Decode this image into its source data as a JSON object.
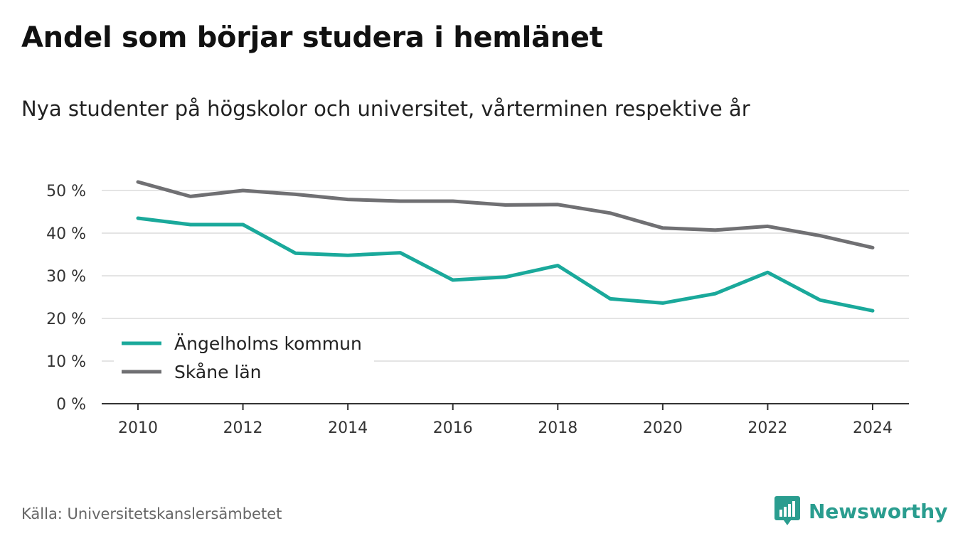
{
  "title": "Andel som börjar studera i hemlänet",
  "subtitle": "Nya studenter på högskolor och universitet, vårterminen respektive år",
  "source": "Källa: Universitetskanslersämbetet",
  "brand": {
    "name": "Newsworthy",
    "icon": "newsworthy-logo-icon",
    "color": "#2a9d8f"
  },
  "chart_data": {
    "type": "line",
    "x": [
      2010,
      2011,
      2012,
      2013,
      2014,
      2015,
      2016,
      2017,
      2018,
      2019,
      2020,
      2021,
      2022,
      2023,
      2024
    ],
    "x_ticks": [
      "2010",
      "2012",
      "2014",
      "2016",
      "2018",
      "2020",
      "2022",
      "2024"
    ],
    "y_ticks": [
      "0 %",
      "10 %",
      "20 %",
      "30 %",
      "40 %",
      "50 %"
    ],
    "ylim": [
      0,
      50
    ],
    "grid": true,
    "legend_position": "bottom-left",
    "series": [
      {
        "name": "Ängelholms kommun",
        "color": "#1aa99b",
        "values": [
          43.5,
          42.0,
          42.0,
          35.3,
          34.8,
          35.4,
          29.0,
          29.7,
          32.4,
          24.6,
          23.6,
          25.8,
          30.8,
          24.3,
          21.8
        ]
      },
      {
        "name": "Skåne län",
        "color": "#707073",
        "values": [
          52.0,
          48.6,
          50.0,
          49.1,
          47.9,
          47.5,
          47.5,
          46.6,
          46.7,
          44.7,
          41.2,
          40.7,
          41.6,
          39.4,
          36.6
        ]
      }
    ]
  }
}
